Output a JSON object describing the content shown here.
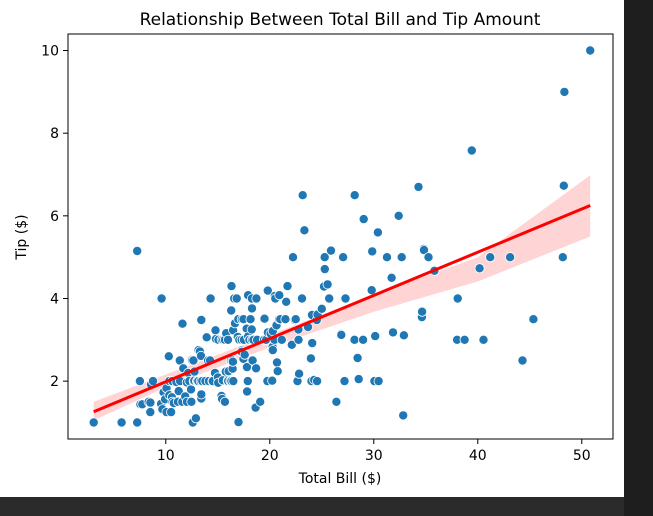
{
  "chart_data": {
    "type": "scatter",
    "title": "Relationship Between Total Bill and Tip Amount",
    "xlabel": "Total Bill ($)",
    "ylabel": "Tip ($)",
    "xlim": [
      0.6,
      53.0
    ],
    "ylim": [
      0.6,
      10.4
    ],
    "xticks": [
      10,
      20,
      30,
      40,
      50
    ],
    "yticks": [
      2,
      4,
      6,
      8,
      10
    ],
    "grid": false,
    "colors": {
      "points": "#1f77b4",
      "regression_line": "#ff0000",
      "confidence_band": "#ffcccc"
    },
    "regression": {
      "x": [
        3.07,
        50.81
      ],
      "y": [
        1.26,
        6.25
      ]
    },
    "confidence_band": {
      "x": [
        3.07,
        10,
        20,
        30,
        40,
        50.81
      ],
      "lower": [
        1.05,
        1.85,
        2.82,
        3.68,
        4.41,
        5.5
      ],
      "upper": [
        1.5,
        2.16,
        3.12,
        4.09,
        5.0,
        6.98
      ]
    },
    "points": [
      [
        3.07,
        1.0
      ],
      [
        5.75,
        1.0
      ],
      [
        7.25,
        1.0
      ],
      [
        7.25,
        5.15
      ],
      [
        7.51,
        2.0
      ],
      [
        7.56,
        1.44
      ],
      [
        7.74,
        1.44
      ],
      [
        8.35,
        1.5
      ],
      [
        8.51,
        1.25
      ],
      [
        8.52,
        1.48
      ],
      [
        8.58,
        1.92
      ],
      [
        8.77,
        2.0
      ],
      [
        9.55,
        1.45
      ],
      [
        9.6,
        4.0
      ],
      [
        9.68,
        1.32
      ],
      [
        9.78,
        1.73
      ],
      [
        9.94,
        1.56
      ],
      [
        10.07,
        1.83
      ],
      [
        10.07,
        1.25
      ],
      [
        10.29,
        2.6
      ],
      [
        10.33,
        2.0
      ],
      [
        10.34,
        1.66
      ],
      [
        10.34,
        2.0
      ],
      [
        10.51,
        1.25
      ],
      [
        10.59,
        1.61
      ],
      [
        10.63,
        2.0
      ],
      [
        10.65,
        1.5
      ],
      [
        10.77,
        1.47
      ],
      [
        11.02,
        1.98
      ],
      [
        11.17,
        1.5
      ],
      [
        11.24,
        1.76
      ],
      [
        11.35,
        2.5
      ],
      [
        11.38,
        2.0
      ],
      [
        11.59,
        1.5
      ],
      [
        11.61,
        3.39
      ],
      [
        11.69,
        2.31
      ],
      [
        11.87,
        1.63
      ],
      [
        12.02,
        1.97
      ],
      [
        12.03,
        1.5
      ],
      [
        12.16,
        2.2
      ],
      [
        12.26,
        2.0
      ],
      [
        12.43,
        1.8
      ],
      [
        12.46,
        1.5
      ],
      [
        12.48,
        2.52
      ],
      [
        12.54,
        2.5
      ],
      [
        12.6,
        1.0
      ],
      [
        12.66,
        2.5
      ],
      [
        12.69,
        2.0
      ],
      [
        12.74,
        2.01
      ],
      [
        12.76,
        2.23
      ],
      [
        12.9,
        1.1
      ],
      [
        13.0,
        2.0
      ],
      [
        13.03,
        2.0
      ],
      [
        13.13,
        2.0
      ],
      [
        13.16,
        2.75
      ],
      [
        13.28,
        2.72
      ],
      [
        13.37,
        2.0
      ],
      [
        13.39,
        2.61
      ],
      [
        13.42,
        3.48
      ],
      [
        13.42,
        1.58
      ],
      [
        13.42,
        1.68
      ],
      [
        13.51,
        2.0
      ],
      [
        13.81,
        2.0
      ],
      [
        13.94,
        3.06
      ],
      [
        14.07,
        2.5
      ],
      [
        14.15,
        2.0
      ],
      [
        14.26,
        2.5
      ],
      [
        14.31,
        4.0
      ],
      [
        14.48,
        2.0
      ],
      [
        14.52,
        2.0
      ],
      [
        14.73,
        2.2
      ],
      [
        14.78,
        3.23
      ],
      [
        14.83,
        3.02
      ],
      [
        15.01,
        2.09
      ],
      [
        15.04,
        1.96
      ],
      [
        15.06,
        3.0
      ],
      [
        15.36,
        1.64
      ],
      [
        15.38,
        3.0
      ],
      [
        15.42,
        1.57
      ],
      [
        15.48,
        2.02
      ],
      [
        15.53,
        3.0
      ],
      [
        15.69,
        3.0
      ],
      [
        15.69,
        1.5
      ],
      [
        15.77,
        2.23
      ],
      [
        15.81,
        3.16
      ],
      [
        15.95,
        2.0
      ],
      [
        15.98,
        2.03
      ],
      [
        15.98,
        3.0
      ],
      [
        16.0,
        2.0
      ],
      [
        16.04,
        2.24
      ],
      [
        16.21,
        2.0
      ],
      [
        16.27,
        2.5
      ],
      [
        16.29,
        3.71
      ],
      [
        16.31,
        2.0
      ],
      [
        16.32,
        4.3
      ],
      [
        16.4,
        2.5
      ],
      [
        16.43,
        2.3
      ],
      [
        16.45,
        2.47
      ],
      [
        16.47,
        3.23
      ],
      [
        16.49,
        2.0
      ],
      [
        16.58,
        4.0
      ],
      [
        16.66,
        3.4
      ],
      [
        16.82,
        4.0
      ],
      [
        16.93,
        3.07
      ],
      [
        16.97,
        3.5
      ],
      [
        16.99,
        1.01
      ],
      [
        17.07,
        3.0
      ],
      [
        17.26,
        2.74
      ],
      [
        17.29,
        2.71
      ],
      [
        17.29,
        3.0
      ],
      [
        17.31,
        3.5
      ],
      [
        17.46,
        2.54
      ],
      [
        17.47,
        3.5
      ],
      [
        17.51,
        3.0
      ],
      [
        17.59,
        2.64
      ],
      [
        17.78,
        3.27
      ],
      [
        17.81,
        2.34
      ],
      [
        17.82,
        1.75
      ],
      [
        17.89,
        2.0
      ],
      [
        17.92,
        3.08
      ],
      [
        17.92,
        4.08
      ],
      [
        18.04,
        3.0
      ],
      [
        18.15,
        3.5
      ],
      [
        18.24,
        3.76
      ],
      [
        18.26,
        3.25
      ],
      [
        18.28,
        4.0
      ],
      [
        18.29,
        3.0
      ],
      [
        18.29,
        3.76
      ],
      [
        18.35,
        2.5
      ],
      [
        18.43,
        3.0
      ],
      [
        18.64,
        1.36
      ],
      [
        18.69,
        2.31
      ],
      [
        18.71,
        4.0
      ],
      [
        18.78,
        3.0
      ],
      [
        19.08,
        1.5
      ],
      [
        19.44,
        3.0
      ],
      [
        19.49,
        3.51
      ],
      [
        19.65,
        3.0
      ],
      [
        19.77,
        2.0
      ],
      [
        19.81,
        4.19
      ],
      [
        19.82,
        3.18
      ],
      [
        20.08,
        3.15
      ],
      [
        20.23,
        2.01
      ],
      [
        20.27,
        2.83
      ],
      [
        20.29,
        2.75
      ],
      [
        20.29,
        3.21
      ],
      [
        20.45,
        3.0
      ],
      [
        20.49,
        4.06
      ],
      [
        20.53,
        4.0
      ],
      [
        20.65,
        3.35
      ],
      [
        20.69,
        2.45
      ],
      [
        20.76,
        2.24
      ],
      [
        20.9,
        3.5
      ],
      [
        20.92,
        4.08
      ],
      [
        21.01,
        3.5
      ],
      [
        21.16,
        3.0
      ],
      [
        21.5,
        3.5
      ],
      [
        21.58,
        3.92
      ],
      [
        21.7,
        4.3
      ],
      [
        22.12,
        2.88
      ],
      [
        22.23,
        5.0
      ],
      [
        22.42,
        3.48
      ],
      [
        22.49,
        3.5
      ],
      [
        22.67,
        2.0
      ],
      [
        22.75,
        3.25
      ],
      [
        22.76,
        3.0
      ],
      [
        22.82,
        2.18
      ],
      [
        23.1,
        4.0
      ],
      [
        23.17,
        6.5
      ],
      [
        23.33,
        5.65
      ],
      [
        23.68,
        3.31
      ],
      [
        23.95,
        2.55
      ],
      [
        24.01,
        2.0
      ],
      [
        24.06,
        3.6
      ],
      [
        24.08,
        2.92
      ],
      [
        24.27,
        2.03
      ],
      [
        24.52,
        3.48
      ],
      [
        24.55,
        2.0
      ],
      [
        24.59,
        3.61
      ],
      [
        25.0,
        3.75
      ],
      [
        25.21,
        4.29
      ],
      [
        25.28,
        5.0
      ],
      [
        25.29,
        4.71
      ],
      [
        25.56,
        4.34
      ],
      [
        25.71,
        4.0
      ],
      [
        25.89,
        5.16
      ],
      [
        26.41,
        1.5
      ],
      [
        26.86,
        3.14
      ],
      [
        26.88,
        3.12
      ],
      [
        27.05,
        5.0
      ],
      [
        27.18,
        2.0
      ],
      [
        27.2,
        4.0
      ],
      [
        27.28,
        4.0
      ],
      [
        28.15,
        3.0
      ],
      [
        28.17,
        6.5
      ],
      [
        28.44,
        2.56
      ],
      [
        28.55,
        2.05
      ],
      [
        28.97,
        3.0
      ],
      [
        29.03,
        5.92
      ],
      [
        29.8,
        4.2
      ],
      [
        29.85,
        5.14
      ],
      [
        30.06,
        2.0
      ],
      [
        30.14,
        3.09
      ],
      [
        30.4,
        5.6
      ],
      [
        30.46,
        2.0
      ],
      [
        31.27,
        5.0
      ],
      [
        31.71,
        4.5
      ],
      [
        31.85,
        3.18
      ],
      [
        32.4,
        6.0
      ],
      [
        32.68,
        5.0
      ],
      [
        32.83,
        1.17
      ],
      [
        32.9,
        3.11
      ],
      [
        34.3,
        6.7
      ],
      [
        34.63,
        3.55
      ],
      [
        34.65,
        3.68
      ],
      [
        34.81,
        5.2
      ],
      [
        34.83,
        5.17
      ],
      [
        35.26,
        5.0
      ],
      [
        35.83,
        4.67
      ],
      [
        38.01,
        3.0
      ],
      [
        38.07,
        4.0
      ],
      [
        38.73,
        3.0
      ],
      [
        39.42,
        7.58
      ],
      [
        40.17,
        4.73
      ],
      [
        40.55,
        3.0
      ],
      [
        41.19,
        5.0
      ],
      [
        43.11,
        5.0
      ],
      [
        44.3,
        2.5
      ],
      [
        45.35,
        3.5
      ],
      [
        48.17,
        5.0
      ],
      [
        48.27,
        6.73
      ],
      [
        48.33,
        9.0
      ],
      [
        50.81,
        10.0
      ]
    ]
  }
}
